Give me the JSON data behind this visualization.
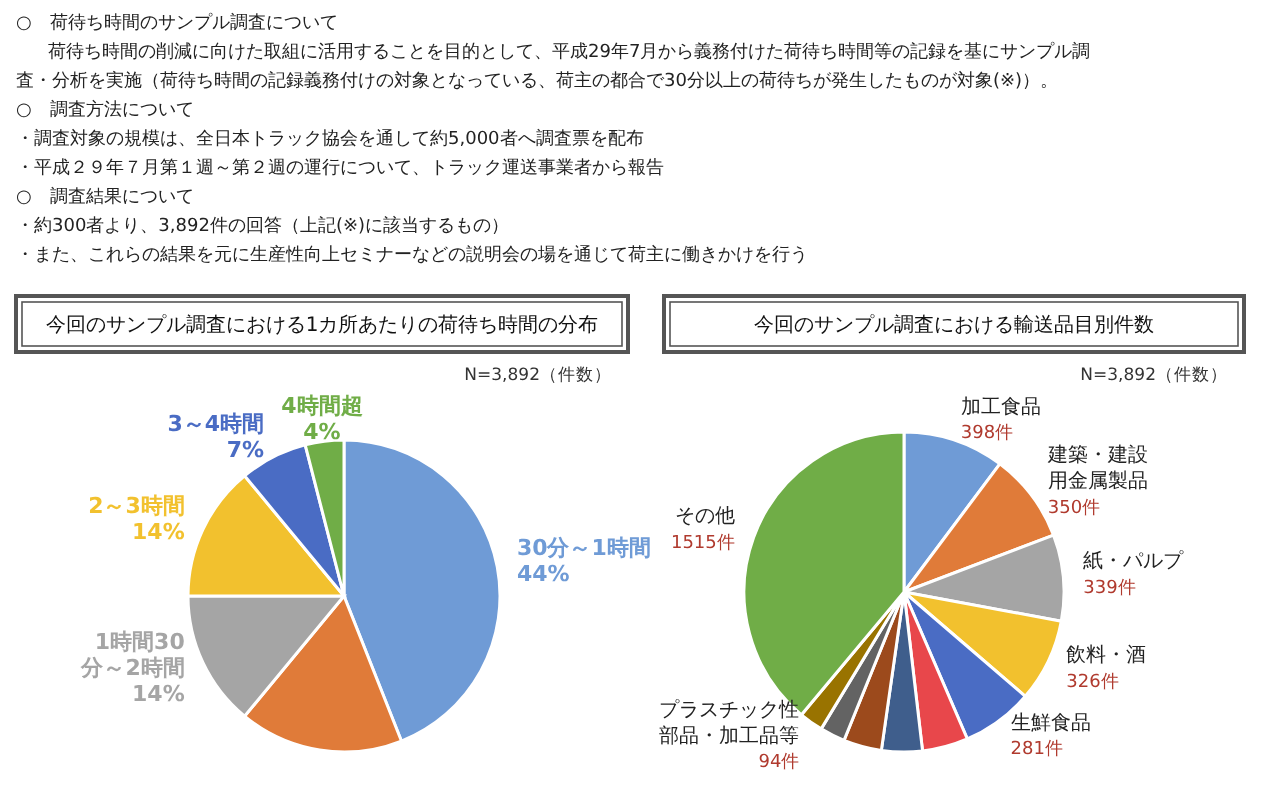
{
  "chart_data": [
    {
      "type": "other",
      "annotations": [
        "○　荷待ち時間のサンプル調査について",
        "荷待ち時間の削減に向けた取組に活用することを目的として、平成29年7月から義務付けた荷待ち時間等の記録を基にサンプル調",
        "査・分析を実施（荷待ち時間の記録義務付けの対象となっている、荷主の都合で30分以上の荷待ちが発生したものが対象(※)）。",
        "○　調査方法について",
        "・調査対象の規模は、全日本トラック協会を通して約5,000者へ調査票を配布",
        "・平成２９年７月第１週～第２週の運行について、トラック運送事業者から報告",
        "○　調査結果について",
        "・約300者より、3,892件の回答（上記(※)に該当するもの）",
        "・また、これらの結果を元に生産性向上セミナーなどの説明会の場を通じて荷主に働きかけを行う"
      ]
    },
    {
      "type": "pie",
      "title": "今回のサンプル調査における1カ所あたりの荷待ち時間の分布",
      "subtitle": "N=3,892（件数）",
      "categories": [
        "30分～1時間",
        null,
        "1時間30分～2時間",
        "2～3時間",
        "3～4時間",
        "4時間超"
      ],
      "values": [
        44,
        17,
        14,
        14,
        7,
        4
      ],
      "value_labels": [
        "44%",
        null,
        "14%",
        "14%",
        "7%",
        "4%"
      ],
      "colors": [
        "#6f9bd6",
        "#e07b39",
        "#a5a5a5",
        "#f2c12e",
        "#4a6cc4",
        "#70ad47"
      ]
    },
    {
      "type": "pie",
      "title": "今回のサンプル調査における輸送品目別件数",
      "subtitle": "N=3,892（件数）",
      "categories": [
        "加工食品",
        "建築・建設用金属製品",
        "紙・パルプ",
        "飲料・酒",
        "生鮮食品",
        null,
        null,
        null,
        null,
        "プラスチック性部品・加工品等",
        "その他"
      ],
      "values": [
        398,
        350,
        339,
        326,
        281,
        180,
        160,
        150,
        99,
        94,
        1515
      ],
      "value_labels": [
        "398件",
        "350件",
        "339件",
        "326件",
        "281件",
        null,
        null,
        null,
        null,
        "94件",
        "1515件"
      ],
      "colors": [
        "#6f9bd6",
        "#e07b39",
        "#a5a5a5",
        "#f2c12e",
        "#4a6cc4",
        "#e8474b",
        "#3f5e8c",
        "#9c4a1c",
        "#636363",
        "#997300",
        "#70ad47"
      ]
    }
  ]
}
